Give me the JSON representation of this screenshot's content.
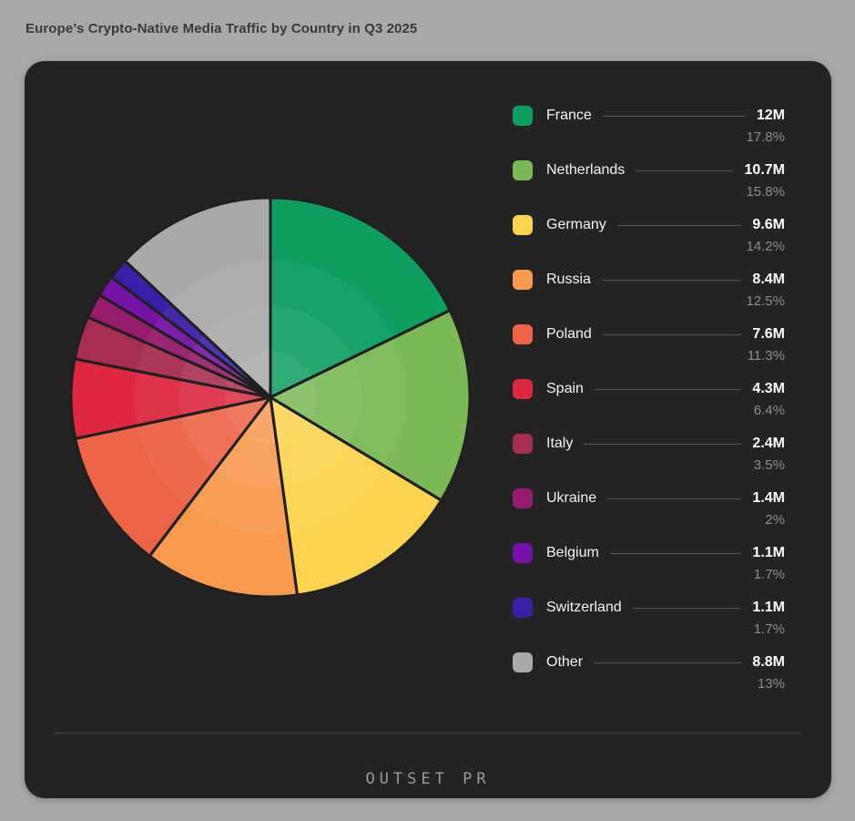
{
  "page": {
    "title": "Europe’s Crypto-Native Media Traffic by Country in Q3 2025"
  },
  "footer": {
    "logo_text": "OUTSET PR"
  },
  "colors": {
    "page_background": "#a9a9a9",
    "card_background": "#232323",
    "slice_border": "#202020",
    "legend_label_text": "#f4f4f4",
    "legend_value_text": "#ffffff",
    "legend_percent_text": "#8d8d8d",
    "connector_line": "#575757",
    "divider": "#4a4a4a",
    "title_text": "#3a3a3a",
    "logo_text": "#969b9a"
  },
  "chart_data": {
    "type": "pie",
    "title": "Europe’s Crypto-Native Media Traffic by Country in Q3 2025",
    "unit": "millions of visits",
    "start_angle_deg": -90,
    "direction": "clockwise",
    "legend_position": "right",
    "series": [
      {
        "label": "France",
        "value_millions": 12,
        "value_label": "12M",
        "percent": 17.8,
        "percent_label": "17.8%",
        "color": "#0d9e60"
      },
      {
        "label": "Netherlands",
        "value_millions": 10.7,
        "value_label": "10.7M",
        "percent": 15.8,
        "percent_label": "15.8%",
        "color": "#7ab956"
      },
      {
        "label": "Germany",
        "value_millions": 9.6,
        "value_label": "9.6M",
        "percent": 14.2,
        "percent_label": "14.2%",
        "color": "#fcd34f"
      },
      {
        "label": "Russia",
        "value_millions": 8.4,
        "value_label": "8.4M",
        "percent": 12.5,
        "percent_label": "12.5%",
        "color": "#f89a4e"
      },
      {
        "label": "Poland",
        "value_millions": 7.6,
        "value_label": "7.6M",
        "percent": 11.3,
        "percent_label": "11.3%",
        "color": "#ec6345"
      },
      {
        "label": "Spain",
        "value_millions": 4.3,
        "value_label": "4.3M",
        "percent": 6.4,
        "percent_label": "6.4%",
        "color": "#dd2840"
      },
      {
        "label": "Italy",
        "value_millions": 2.4,
        "value_label": "2.4M",
        "percent": 3.5,
        "percent_label": "3.5%",
        "color": "#a82e51"
      },
      {
        "label": "Ukraine",
        "value_millions": 1.4,
        "value_label": "1.4M",
        "percent": 2,
        "percent_label": "2%",
        "color": "#951b6c"
      },
      {
        "label": "Belgium",
        "value_millions": 1.1,
        "value_label": "1.1M",
        "percent": 1.7,
        "percent_label": "1.7%",
        "color": "#7414a6"
      },
      {
        "label": "Switzerland",
        "value_millions": 1.1,
        "value_label": "1.1M",
        "percent": 1.7,
        "percent_label": "1.7%",
        "color": "#3a1ea8"
      },
      {
        "label": "Other",
        "value_millions": 8.8,
        "value_label": "8.8M",
        "percent": 13,
        "percent_label": "13%",
        "color": "#a9a9a9"
      }
    ]
  }
}
